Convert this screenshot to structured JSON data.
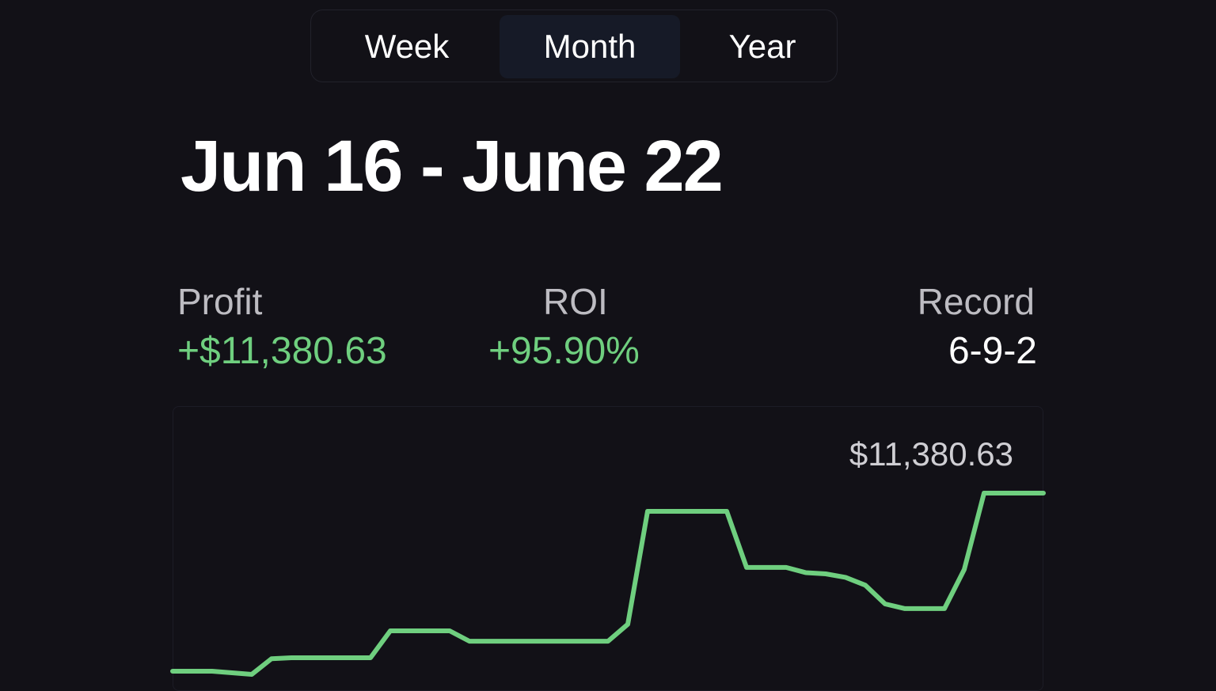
{
  "tabs": [
    "Week",
    "Month",
    "Year"
  ],
  "title": "Jun 16 - June 22",
  "stats": [
    {
      "label": "Profit",
      "value": "+$11,380.63"
    },
    {
      "label": "ROI",
      "value": "+95.90%"
    },
    {
      "label": "Record",
      "value": "6-9-2"
    }
  ],
  "chart_data": {
    "type": "line",
    "color": "#6fcf7f",
    "values": [
      0,
      0,
      0,
      -100,
      -200,
      800,
      860,
      860,
      860,
      860,
      860,
      2580,
      2580,
      2580,
      2580,
      1920,
      1920,
      1920,
      1920,
      1920,
      1920,
      1920,
      1920,
      3000,
      10220,
      10220,
      10220,
      10220,
      10220,
      6630,
      6630,
      6630,
      6300,
      6220,
      6000,
      5500,
      4300,
      4000,
      4000,
      4000,
      6500,
      11380.63,
      11380.63,
      11380.63,
      11380.63
    ],
    "value_labels": [
      null,
      null,
      null,
      null,
      null,
      null,
      null,
      null,
      null,
      null,
      null,
      null,
      null,
      null,
      null,
      null,
      null,
      null,
      null,
      null,
      null,
      null,
      null,
      null,
      null,
      null,
      null,
      null,
      null,
      null,
      null,
      null,
      null,
      null,
      null,
      null,
      null,
      null,
      null,
      null,
      null,
      null,
      null,
      null,
      "$11,380.63"
    ]
  }
}
